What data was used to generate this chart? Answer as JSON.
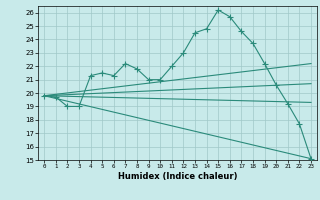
{
  "xlabel": "Humidex (Indice chaleur)",
  "bg_color": "#c8eaea",
  "grid_color": "#a0c8c8",
  "line_color": "#2a8a7a",
  "xlim": [
    -0.5,
    23.5
  ],
  "ylim": [
    15,
    26.5
  ],
  "xticks": [
    0,
    1,
    2,
    3,
    4,
    5,
    6,
    7,
    8,
    9,
    10,
    11,
    12,
    13,
    14,
    15,
    16,
    17,
    18,
    19,
    20,
    21,
    22,
    23
  ],
  "yticks": [
    15,
    16,
    17,
    18,
    19,
    20,
    21,
    22,
    23,
    24,
    25,
    26
  ],
  "main_line_x": [
    0,
    1,
    2,
    3,
    4,
    5,
    6,
    7,
    8,
    9,
    10,
    11,
    12,
    13,
    14,
    15,
    16,
    17,
    18,
    19,
    20,
    21,
    22,
    23
  ],
  "main_line_y": [
    19.8,
    19.7,
    19.0,
    19.0,
    21.3,
    21.5,
    21.3,
    22.2,
    21.8,
    21.0,
    21.0,
    22.0,
    23.0,
    24.5,
    24.8,
    26.2,
    25.7,
    24.6,
    23.7,
    22.2,
    20.6,
    19.2,
    17.7,
    15.1
  ],
  "line2_x": [
    0,
    23
  ],
  "line2_y": [
    19.8,
    22.2
  ],
  "line3_x": [
    0,
    23
  ],
  "line3_y": [
    19.8,
    20.7
  ],
  "line4_x": [
    0,
    23
  ],
  "line4_y": [
    19.8,
    19.3
  ],
  "line5_x": [
    0,
    23
  ],
  "line5_y": [
    19.8,
    15.1
  ]
}
